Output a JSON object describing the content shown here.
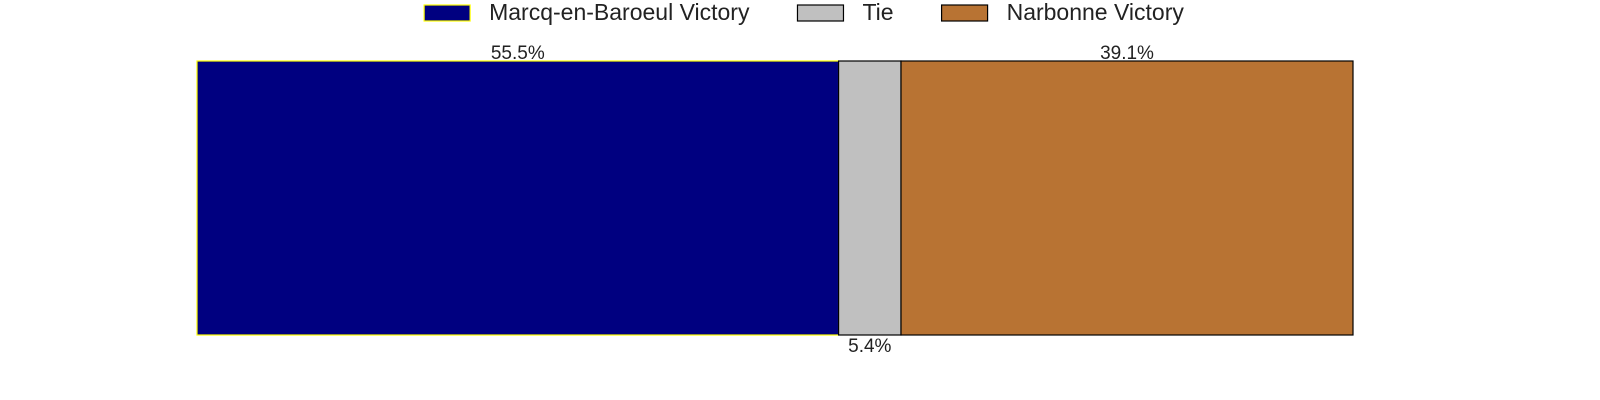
{
  "chart_data": {
    "type": "bar",
    "orientation": "horizontal",
    "stacked": true,
    "categories": [
      null
    ],
    "series": [
      {
        "name": "Marcq-en-Baroeul Victory",
        "color": "#000080",
        "edgecolor": "#ffff00",
        "values": [
          55.5
        ],
        "value_labels": [
          "55.5%"
        ]
      },
      {
        "name": "Tie",
        "color": "#c0c0c0",
        "edgecolor": "#000000",
        "values": [
          5.4
        ],
        "value_labels": [
          "5.4%"
        ]
      },
      {
        "name": "Narbonne Victory",
        "color": "#b87333",
        "edgecolor": "#000000",
        "values": [
          39.1
        ],
        "value_labels": [
          "39.1%"
        ]
      }
    ],
    "xlim": [
      0,
      100
    ],
    "legend": "top",
    "grid": false
  }
}
